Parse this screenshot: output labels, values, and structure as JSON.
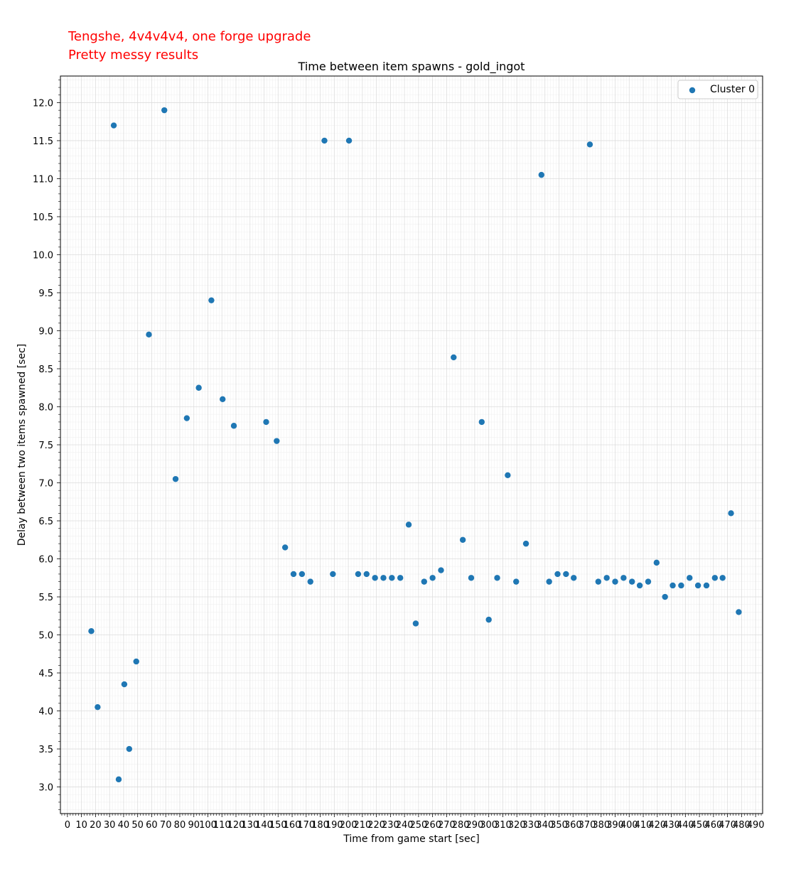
{
  "annotations": [
    "Tengshe, 4v4v4v4, one forge upgrade",
    "Pretty messy results"
  ],
  "chart_data": {
    "type": "scatter",
    "title": "Time between item spawns - gold_ingot",
    "xlabel": "Time from game start [sec]",
    "ylabel": "Delay between two items spawned [sec]",
    "xlim": [
      -5,
      495
    ],
    "ylim": [
      2.65,
      12.35
    ],
    "x_major_step": 10,
    "x_minor_step": 2,
    "y_major_step": 0.5,
    "y_minor_step": 0.1,
    "grid": true,
    "legend_placement": "top-right",
    "colors": {
      "point": "#1f77b4",
      "annotation": "#ff0000"
    },
    "series": [
      {
        "name": "Cluster 0",
        "points": [
          [
            17,
            5.05
          ],
          [
            21.5,
            4.05
          ],
          [
            33,
            11.7
          ],
          [
            36.5,
            3.1
          ],
          [
            40.5,
            4.35
          ],
          [
            44,
            3.5
          ],
          [
            49,
            4.65
          ],
          [
            58,
            8.95
          ],
          [
            69,
            11.9
          ],
          [
            77,
            7.05
          ],
          [
            85,
            7.85
          ],
          [
            93.5,
            8.25
          ],
          [
            102.5,
            9.4
          ],
          [
            110.5,
            8.1
          ],
          [
            118.5,
            7.75
          ],
          [
            141.5,
            7.8
          ],
          [
            149,
            7.55
          ],
          [
            155,
            6.15
          ],
          [
            161,
            5.8
          ],
          [
            167,
            5.8
          ],
          [
            173,
            5.7
          ],
          [
            183,
            11.5
          ],
          [
            189,
            5.8
          ],
          [
            200.5,
            11.5
          ],
          [
            207,
            5.8
          ],
          [
            213,
            5.8
          ],
          [
            219,
            5.75
          ],
          [
            225,
            5.75
          ],
          [
            231,
            5.75
          ],
          [
            237,
            5.75
          ],
          [
            243,
            6.45
          ],
          [
            248,
            5.15
          ],
          [
            254,
            5.7
          ],
          [
            260,
            5.75
          ],
          [
            266,
            5.85
          ],
          [
            275,
            8.65
          ],
          [
            281.5,
            6.25
          ],
          [
            287.5,
            5.75
          ],
          [
            295,
            7.8
          ],
          [
            300,
            5.2
          ],
          [
            306,
            5.75
          ],
          [
            313.5,
            7.1
          ],
          [
            319.5,
            5.7
          ],
          [
            326.5,
            6.2
          ],
          [
            337.5,
            11.05
          ],
          [
            343,
            5.7
          ],
          [
            349,
            5.8
          ],
          [
            355,
            5.8
          ],
          [
            360.5,
            5.75
          ],
          [
            372,
            11.45
          ],
          [
            378,
            5.7
          ],
          [
            384,
            5.75
          ],
          [
            390,
            5.7
          ],
          [
            396,
            5.75
          ],
          [
            402,
            5.7
          ],
          [
            407.5,
            5.65
          ],
          [
            413.5,
            5.7
          ],
          [
            419.5,
            5.95
          ],
          [
            425.5,
            5.5
          ],
          [
            431,
            5.65
          ],
          [
            437,
            5.65
          ],
          [
            443,
            5.75
          ],
          [
            449,
            5.65
          ],
          [
            455,
            5.65
          ],
          [
            461,
            5.75
          ],
          [
            466.5,
            5.75
          ],
          [
            472.5,
            6.6
          ],
          [
            478,
            5.3
          ]
        ]
      }
    ]
  }
}
